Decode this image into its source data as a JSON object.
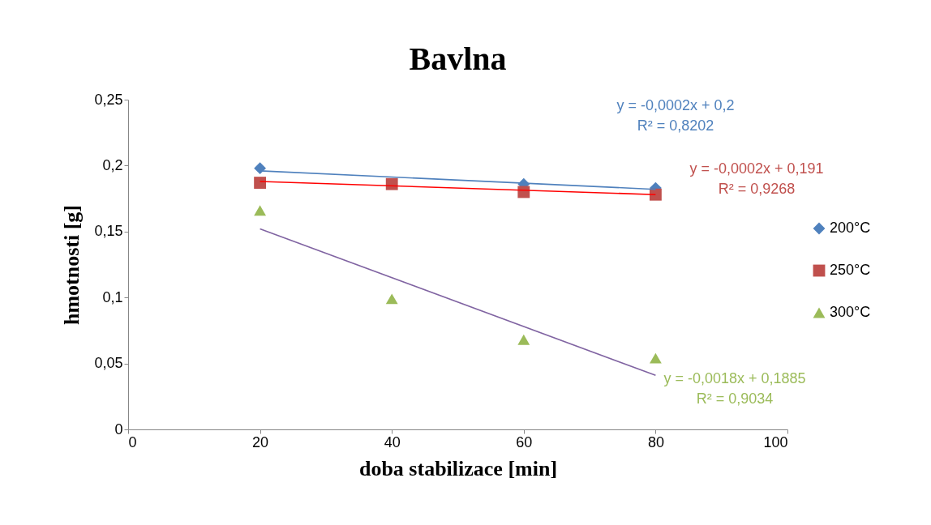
{
  "chart_data": {
    "type": "scatter",
    "title": "Bavlna",
    "xlabel": "doba stabilizace [min]",
    "ylabel": "hmotnosti [g]",
    "xlim": [
      0,
      100
    ],
    "xticks": [
      0,
      20,
      40,
      60,
      80,
      100
    ],
    "ylim": [
      0,
      0.25
    ],
    "yticks": [
      0,
      {
        "value": 0.05,
        "label": "0,05"
      },
      {
        "value": 0.1,
        "label": "0,1"
      },
      {
        "value": 0.15,
        "label": "0,15"
      },
      {
        "value": 0.2,
        "label": "0,2"
      },
      {
        "value": 0.25,
        "label": "0,25"
      }
    ],
    "grid": false,
    "legend": "right",
    "series": [
      {
        "name": "200°C",
        "marker": "diamond",
        "color": "#4f81bd",
        "x": [
          20,
          40,
          60,
          80
        ],
        "values": [
          0.198,
          null,
          0.186,
          0.183
        ]
      },
      {
        "name": "250°C",
        "marker": "square",
        "color": "#c0504d",
        "x": [
          20,
          40,
          60,
          80
        ],
        "values": [
          0.187,
          0.186,
          0.18,
          0.178
        ]
      },
      {
        "name": "300°C",
        "marker": "triangle",
        "color": "#9bbb59",
        "x": [
          20,
          40,
          60,
          80
        ],
        "values": [
          0.166,
          0.099,
          0.068,
          0.054
        ]
      },
      {
        "type": "line",
        "color": "#4f81bd",
        "x": [
          20,
          80
        ],
        "values": [
          0.196,
          0.182
        ]
      },
      {
        "type": "line",
        "color": "#ff0000",
        "x": [
          20,
          80
        ],
        "values": [
          0.188,
          0.178
        ]
      },
      {
        "type": "line",
        "color": "#8064a2",
        "x": [
          20,
          80
        ],
        "values": [
          0.152,
          0.041
        ]
      }
    ],
    "annotations": [
      "y = -0,0002x + 0,2",
      "R² = 0,8202",
      "y = -0,0002x + 0,191",
      "R² = 0,9268",
      "y = -0,0018x + 0,1885",
      "R² = 0,9034"
    ]
  }
}
